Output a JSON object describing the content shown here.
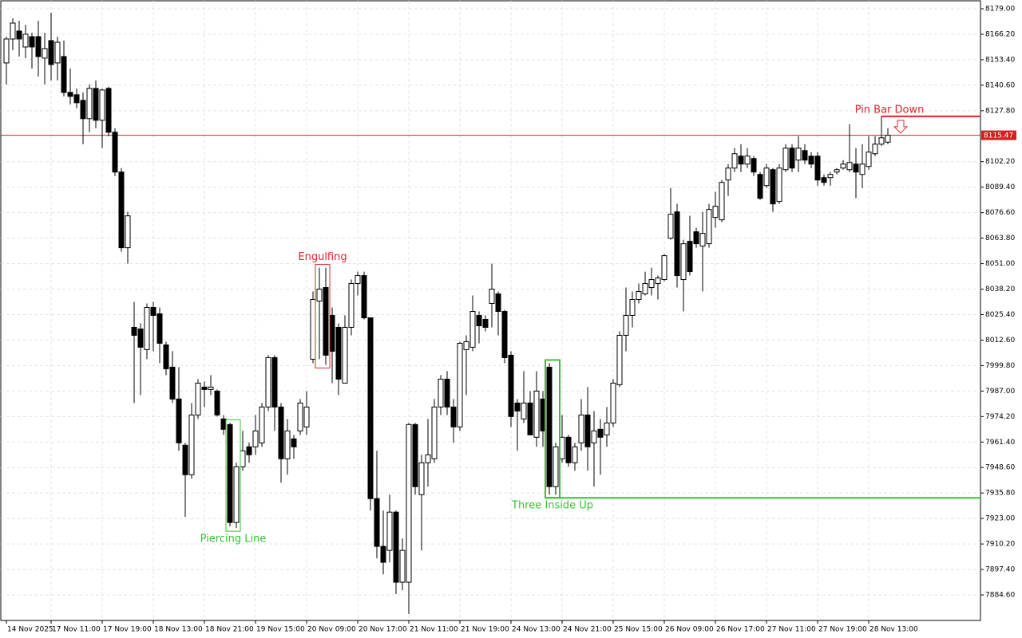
{
  "chart_data": {
    "type": "candlestick",
    "categories": [
      "14 Nov 2025",
      null,
      null,
      null,
      null,
      null,
      null,
      "17 Nov 11:00",
      null,
      null,
      null,
      null,
      null,
      null,
      null,
      "17 Nov 19:00",
      null,
      null,
      null,
      null,
      null,
      null,
      null,
      "18 Nov 13:00",
      null,
      null,
      null,
      null,
      null,
      null,
      null,
      "18 Nov 21:00",
      null,
      null,
      null,
      null,
      null,
      null,
      null,
      "19 Nov 15:00",
      null,
      null,
      null,
      null,
      null,
      null,
      null,
      "20 Nov 09:00",
      null,
      null,
      null,
      null,
      null,
      null,
      null,
      "20 Nov 17:00",
      null,
      null,
      null,
      null,
      null,
      null,
      null,
      "21 Nov 11:00",
      null,
      null,
      null,
      null,
      null,
      null,
      null,
      "21 Nov 19:00",
      null,
      null,
      null,
      null,
      null,
      null,
      null,
      "24 Nov 13:00",
      null,
      null,
      null,
      null,
      null,
      null,
      null,
      "24 Nov 21:00",
      null,
      null,
      null,
      null,
      null,
      null,
      null,
      "25 Nov 15:00",
      null,
      null,
      null,
      null,
      null,
      null,
      null,
      "26 Nov 09:00",
      null,
      null,
      null,
      null,
      null,
      null,
      null,
      "26 Nov 17:00",
      null,
      null,
      null,
      null,
      null,
      null,
      null,
      "27 Nov 11:00",
      null,
      null,
      null,
      null,
      null,
      null,
      null,
      "27 Nov 19:00",
      null,
      null,
      null,
      null,
      null,
      null,
      null,
      "28 Nov 13:00",
      null,
      null,
      null
    ],
    "open": [
      8151.8,
      8163.8,
      8167.8,
      8159.8,
      8165,
      8165,
      8154.2,
      8163,
      8151.8,
      8155,
      8137,
      8135.8,
      8133,
      8123.8,
      8139,
      8123,
      8139,
      8117,
      8097,
      8059,
      8019,
      8018.2,
      8007.8,
      8029,
      8025.8,
      8010.2,
      7999,
      7983,
      7959.8,
      7945,
      7975,
      7989,
      7987.8,
      7987,
      7973,
      7970.2,
      7921,
      7949,
      7959,
      7959,
      7961,
      7979,
      8003.8,
      7979,
      7953,
      7963,
      7967,
      7969,
      8003,
      8032.2,
      8039,
      8025,
      8019,
      7991,
      8019,
      8041,
      8045,
      8023.8,
      7933,
      7909,
      7907,
      7926.2,
      7891,
      7891,
      7970.2,
      7935,
      7951,
      7953,
      7979,
      7993,
      7979,
      7969,
      8007.8,
      8009,
      8025,
      8023,
      8031,
      8035.8,
      8027,
      8005,
      7981,
      7973,
      7981,
      7963.8,
      7983,
      7999,
      7939,
      7953,
      7963.8,
      7951,
      7961,
      7975,
      7961,
      7967.8,
      7965,
      7971,
      7990.2,
      8015,
      8025,
      8033,
      8035.8,
      8039,
      8041,
      8043,
      8063.8,
      8077,
      8043,
      8062.2,
      8067,
      8059.8,
      8061,
      8074.2,
      8073,
      8093,
      8099,
      8105,
      8101,
      8103.8,
      8095.8,
      8090.2,
      8098.2,
      8082.2,
      8098.2,
      8109,
      8103,
      8107.8,
      8105,
      8105,
      8094.2,
      8094.2,
      8097,
      8099,
      8098.2,
      8101,
      8095.8,
      8099.8,
      8106.2,
      8111,
      8112
    ],
    "high": [
      8165,
      8174.2,
      8173,
      8171,
      8167,
      8173,
      8167,
      8177,
      8165,
      8163,
      8149,
      8139,
      8137,
      8141,
      8143,
      8139,
      8139.8,
      8119,
      8099,
      8077,
      8031.8,
      8021,
      8031,
      8031.8,
      8029,
      8011.8,
      8007,
      7999,
      7961,
      7981,
      7993,
      7991.8,
      7995,
      7987.8,
      7975,
      7971,
      7951,
      7967,
      7961,
      7975,
      7981,
      8005,
      8005,
      7981,
      7973,
      7965,
      7983,
      7987,
      8037,
      8049,
      8049,
      8029,
      8021,
      8025,
      8043,
      8047,
      8047,
      8023.8,
      7957,
      7927,
      7935,
      7927,
      7913,
      7971,
      7971,
      7955,
      7973,
      7983,
      7995,
      7997,
      7983,
      8011.8,
      8015,
      8035,
      8027,
      8025,
      8051,
      8037,
      8027.8,
      8007,
      7983,
      7997,
      7987,
      7997,
      7987,
      8001,
      7961,
      7975,
      7965,
      7961,
      7983,
      7989,
      7977,
      7973,
      7979,
      7993,
      8017,
      8039,
      8037,
      8041,
      8047,
      8049,
      8045,
      8055.8,
      8089,
      8081,
      8063,
      8075,
      8069,
      8077,
      8081,
      8087,
      8093,
      8101,
      8109,
      8111,
      8109,
      8105,
      8097,
      8101,
      8099,
      8101,
      8111,
      8111,
      8115,
      8111,
      8107,
      8107,
      8095.8,
      8097,
      8099,
      8103,
      8121,
      8109,
      8111,
      8115,
      8115,
      8125,
      8119
    ],
    "low": [
      8141,
      8158.2,
      8155,
      8154.2,
      8149,
      8145,
      8141,
      8143,
      8143,
      8135,
      8131,
      8129,
      8111,
      8117,
      8119,
      8109,
      8115,
      8095,
      8057,
      8051,
      7981,
      7985,
      8003,
      8007,
      8001,
      7995,
      7981,
      7957,
      7923.8,
      7943,
      7973,
      7979,
      7985,
      7974.2,
      7965,
      7919,
      7918.2,
      7947,
      7951,
      7955,
      7959,
      7977,
      7967,
      7941,
      7945,
      7953,
      7965,
      7965,
      8001,
      8003,
      8000.2,
      7991,
      7985,
      7991,
      8015,
      8035,
      8023,
      7927,
      7903,
      7895,
      7901,
      7885,
      7887,
      7875,
      7935,
      7907,
      7939,
      7951,
      7975,
      7975,
      7961,
      7967,
      7985,
      8007,
      8011,
      8017,
      8019,
      8015,
      8001,
      7969,
      7957,
      7971,
      7965,
      7959,
      7959,
      7935,
      7935,
      7951,
      7949,
      7947,
      7957,
      7947,
      7939,
      7945,
      7959,
      7969,
      7989,
      8007,
      8019,
      8031,
      8035,
      8035,
      8033,
      8042.2,
      8063,
      8039,
      8027,
      8045,
      8059,
      8037,
      8059,
      8069,
      8071.8,
      8085,
      8097,
      8097,
      8099,
      8095,
      8083,
      8089,
      8077,
      8081,
      8097,
      8097,
      8097,
      8101,
      8099,
      8090.2,
      8090.2,
      8090.2,
      8095.8,
      8098.2,
      8097,
      8083.8,
      8089,
      8098.2,
      8105,
      8110.2,
      8111
    ],
    "close": [
      8163.8,
      8171.8,
      8163.8,
      8166.2,
      8159.8,
      8155,
      8159,
      8151,
      8162.2,
      8137,
      8135,
      8131.8,
      8123.8,
      8139,
      8123,
      8138.2,
      8117,
      8097,
      8059,
      8075,
      8015,
      8009,
      8029,
      8025,
      8011,
      7998.2,
      7983,
      7961,
      7945,
      7975,
      7991,
      7987.8,
      7989,
      7975,
      7967.8,
      7921,
      7949,
      7957,
      7955,
      7967,
      7979,
      8003.8,
      7979,
      7953,
      7967,
      7959,
      7981,
      7979,
      8033,
      8038.2,
      8005,
      8007,
      7993,
      8019,
      8041,
      8045,
      8023.8,
      7933,
      7909,
      7901,
      7926.2,
      7891,
      7907,
      7970.2,
      7939,
      7951,
      7955,
      7979,
      7993,
      7979,
      7969,
      8011,
      8011.8,
      8027,
      8019.8,
      8019,
      8038.2,
      8027,
      8003.8,
      7974.2,
      7977,
      7981,
      7965,
      7987,
      7967,
      7939,
      7959,
      7963.8,
      7951,
      7959,
      7975,
      7959,
      7967,
      7963.8,
      7971,
      7991,
      8015,
      8025,
      8033,
      8037,
      8041,
      8043,
      8043.8,
      8055,
      8075.8,
      8045,
      8061,
      8047,
      8061,
      8066.2,
      8078.2,
      8079.8,
      8091.8,
      8099,
      8106.2,
      8101,
      8105,
      8097,
      8083.8,
      8099,
      8081,
      8099,
      8109,
      8099,
      8109,
      8103,
      8101,
      8093,
      8091.8,
      8095.8,
      8098.2,
      8101,
      8101.8,
      8097,
      8101,
      8107,
      8111,
      8114.2,
      8115.47
    ],
    "ylim": [
      7871.8,
      8183
    ],
    "yticks": [
      {
        "value": 8179,
        "label": "8179.00"
      },
      {
        "value": 8166.2,
        "label": "8166.20"
      },
      {
        "value": 8153.4,
        "label": "8153.40"
      },
      {
        "value": 8140.6,
        "label": "8140.60"
      },
      {
        "value": 8127.8,
        "label": "8127.80"
      },
      {
        "value": 8102.2,
        "label": "8102.20"
      },
      {
        "value": 8089.4,
        "label": "8089.40"
      },
      {
        "value": 8076.6,
        "label": "8076.60"
      },
      {
        "value": 8063.8,
        "label": "8063.80"
      },
      {
        "value": 8051,
        "label": "8051.00"
      },
      {
        "value": 8038.2,
        "label": "8038.20"
      },
      {
        "value": 8025.4,
        "label": "8025.40"
      },
      {
        "value": 8012.6,
        "label": "8012.60"
      },
      {
        "value": 7999.8,
        "label": "7999.80"
      },
      {
        "value": 7987,
        "label": "7987.00"
      },
      {
        "value": 7974.2,
        "label": "7974.20"
      },
      {
        "value": 7961.4,
        "label": "7961.40"
      },
      {
        "value": 7948.6,
        "label": "7948.60"
      },
      {
        "value": 7935.8,
        "label": "7935.80"
      },
      {
        "value": 7923,
        "label": "7923.00"
      },
      {
        "value": 7910.2,
        "label": "7910.20"
      },
      {
        "value": 7897.4,
        "label": "7897.40"
      },
      {
        "value": 7884.6,
        "label": "7884.60"
      }
    ],
    "current_price": 8115.47,
    "current_price_color": "#d32020",
    "grid": true,
    "up_color": "#ffffff",
    "down_color": "#000000",
    "annotations": [
      {
        "text": "Engulfing",
        "color": "#e0242a"
      },
      {
        "text": "Piercing Line",
        "color": "#33c433"
      },
      {
        "text": "Three Inside Up",
        "color": "#33c433"
      },
      {
        "text": "Pin Bar Down",
        "color": "#e0242a"
      }
    ]
  }
}
